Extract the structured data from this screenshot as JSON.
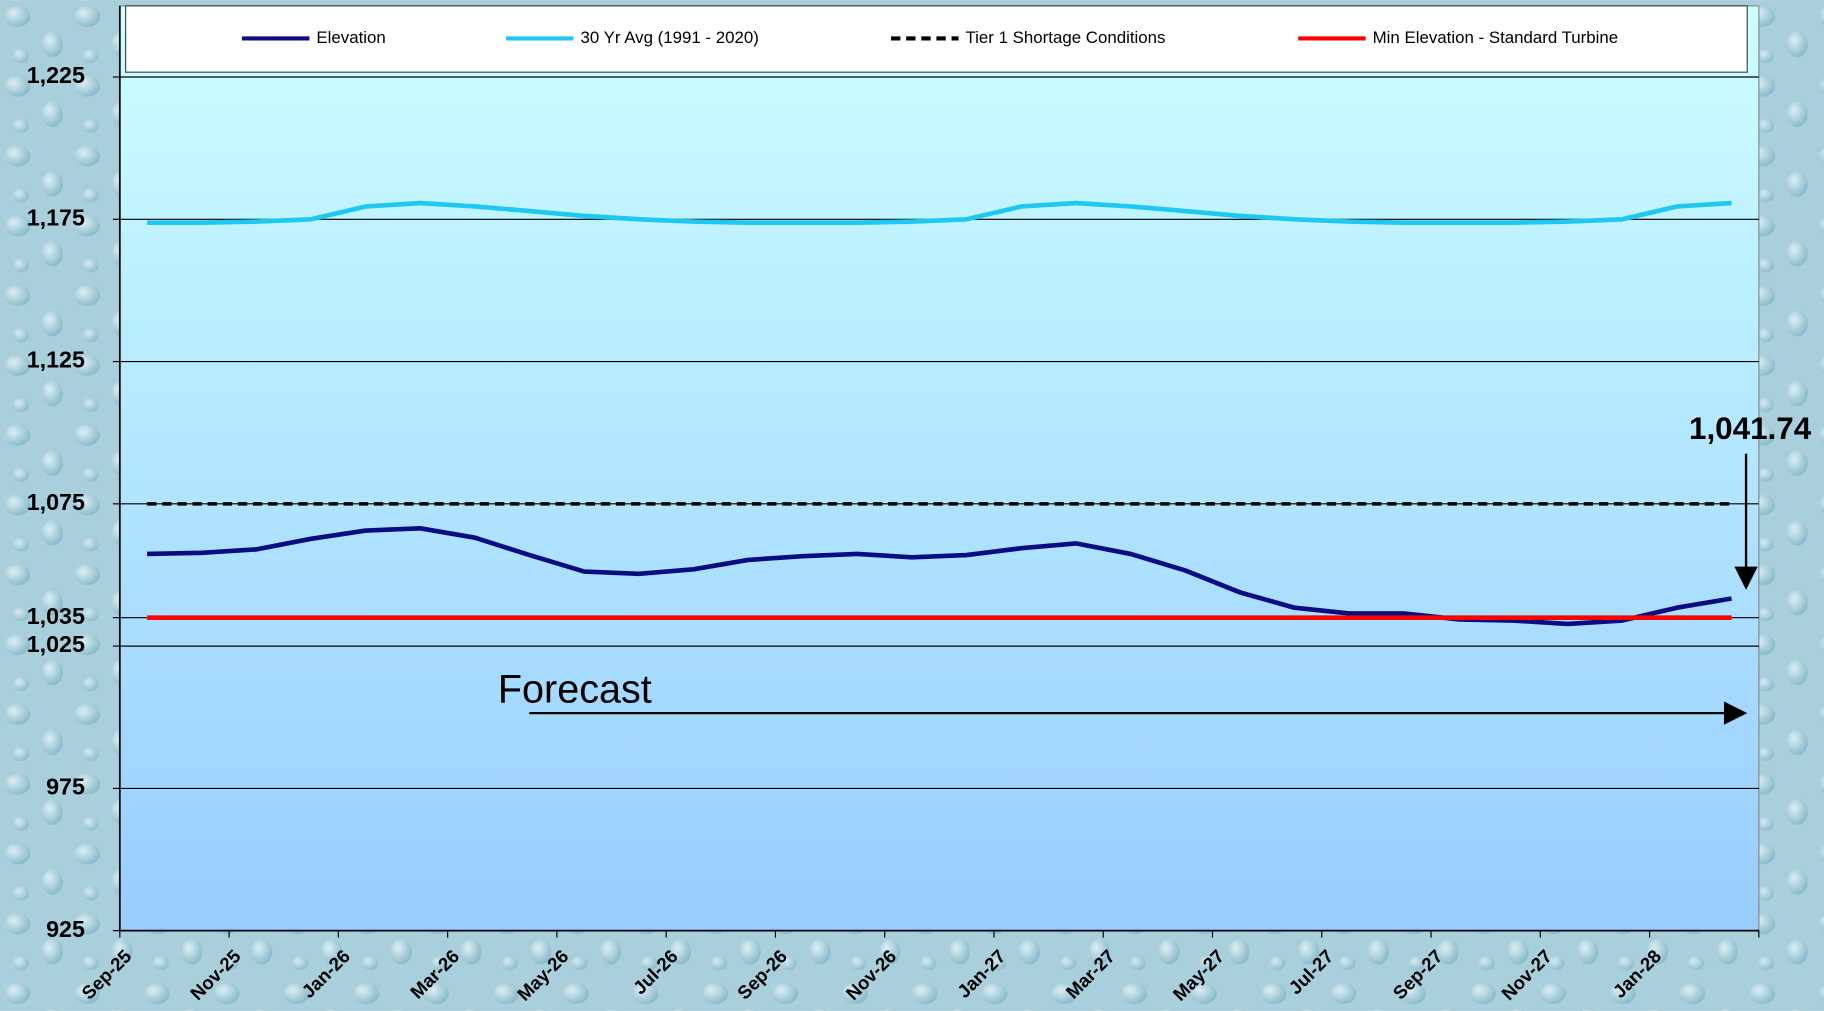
{
  "chart_data": {
    "type": "line",
    "categories": [
      "Sep-25",
      null,
      "Nov-25",
      null,
      "Jan-26",
      null,
      "Mar-26",
      null,
      "May-26",
      null,
      "Jul-26",
      null,
      "Sep-26",
      null,
      "Nov-26",
      null,
      "Jan-27",
      null,
      "Mar-27",
      null,
      "May-27",
      null,
      "Jul-27",
      null,
      "Sep-27",
      null,
      "Nov-27",
      null,
      "Jan-28",
      null
    ],
    "series": [
      {
        "name": "Elevation",
        "color": "#0c0c82",
        "style": "solid",
        "values": [
          1057.4,
          1057.8,
          1059,
          1062.7,
          1065.6,
          1066.4,
          1063.1,
          1057,
          1051.2,
          1050.4,
          1052,
          1055.3,
          1056.6,
          1057.4,
          1056.2,
          1057,
          1059.4,
          1061.1,
          1057.4,
          1051.6,
          1043.9,
          1038.5,
          1036.5,
          1036.5,
          1034.4,
          1034,
          1032.8,
          1034,
          1038.5,
          1041.74
        ]
      },
      {
        "name": "30 Yr Avg (1991 - 2020)",
        "color": "#1ec8f0",
        "style": "solid",
        "values": [
          1173.8,
          1173.8,
          1174.2,
          1175,
          1179.5,
          1180.7,
          1179.5,
          1177.9,
          1176.2,
          1175,
          1174.2,
          1173.8,
          1173.8,
          1173.8,
          1174.2,
          1175,
          1179.5,
          1180.7,
          1179.5,
          1177.9,
          1176.2,
          1175,
          1174.2,
          1173.8,
          1173.8,
          1173.8,
          1174.2,
          1175,
          1179.5,
          1180.7
        ]
      },
      {
        "name": "Tier 1 Shortage Conditions",
        "color": "#000000",
        "style": "dashed",
        "values": [
          1075,
          1075,
          1075,
          1075,
          1075,
          1075,
          1075,
          1075,
          1075,
          1075,
          1075,
          1075,
          1075,
          1075,
          1075,
          1075,
          1075,
          1075,
          1075,
          1075,
          1075,
          1075,
          1075,
          1075,
          1075,
          1075,
          1075,
          1075,
          1075,
          1075
        ]
      },
      {
        "name": "Min Elevation - Standard Turbine",
        "color": "#ff0000",
        "style": "solid",
        "values": [
          1035,
          1035,
          1035,
          1035,
          1035,
          1035,
          1035,
          1035,
          1035,
          1035,
          1035,
          1035,
          1035,
          1035,
          1035,
          1035,
          1035,
          1035,
          1035,
          1035,
          1035,
          1035,
          1035,
          1035,
          1035,
          1035,
          1035,
          1035,
          1035,
          1035
        ]
      }
    ],
    "ylim": [
      925,
      1250
    ],
    "yticks": [
      {
        "value": 925,
        "label": "925"
      },
      {
        "value": 975,
        "label": "975"
      },
      {
        "value": 1025,
        "label": "1,025"
      },
      {
        "value": 1035,
        "label": "1,035"
      },
      {
        "value": 1075,
        "label": "1,075"
      },
      {
        "value": 1125,
        "label": "1,125"
      },
      {
        "value": 1175,
        "label": "1,175"
      },
      {
        "value": 1225,
        "label": "1,225"
      }
    ],
    "grid": true,
    "legend": "top",
    "annotations": [
      "1,041.74",
      "Forecast"
    ]
  }
}
